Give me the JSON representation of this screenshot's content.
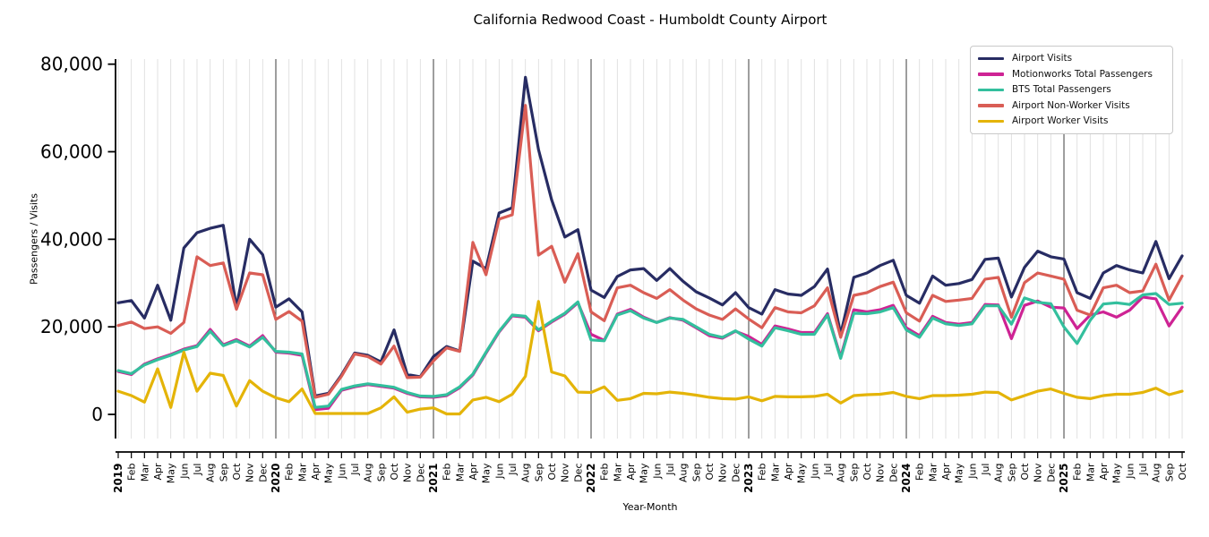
{
  "chart_data": {
    "type": "line",
    "title": "California Redwood Coast - Humboldt County Airport",
    "xlabel": "Year-Month",
    "ylabel": "Passengers / Visits",
    "ylim": [
      -5500,
      81000
    ],
    "yticks": [
      0,
      20000,
      40000,
      60000,
      80000
    ],
    "ytick_labels": [
      "0",
      "20,000",
      "40,000",
      "60,000",
      "80,000"
    ],
    "grid": "vertical-monthly, dark line at each January",
    "legend_position": "upper right",
    "x_labels": [
      "2019",
      "Feb",
      "Mar",
      "Apr",
      "May",
      "Jun",
      "Jul",
      "Aug",
      "Sep",
      "Oct",
      "Nov",
      "Dec",
      "2020",
      "Feb",
      "Mar",
      "Apr",
      "May",
      "Jun",
      "Jul",
      "Aug",
      "Sep",
      "Oct",
      "Nov",
      "Dec",
      "2021",
      "Feb",
      "Mar",
      "Apr",
      "May",
      "Jun",
      "Jul",
      "Aug",
      "Sep",
      "Oct",
      "Nov",
      "Dec",
      "2022",
      "Feb",
      "Mar",
      "Apr",
      "May",
      "Jun",
      "Jul",
      "Aug",
      "Sep",
      "Oct",
      "Nov",
      "Dec",
      "2023",
      "Feb",
      "Mar",
      "Apr",
      "May",
      "Jun",
      "Jul",
      "Aug",
      "Sep",
      "Oct",
      "Nov",
      "Dec",
      "2024",
      "Feb",
      "Mar",
      "Apr",
      "May",
      "Jun",
      "Jul",
      "Aug",
      "Sep",
      "Oct",
      "Nov",
      "Dec",
      "2025",
      "Feb",
      "Mar",
      "Apr",
      "May",
      "Jun",
      "Jul",
      "Aug",
      "Sep",
      "Oct"
    ],
    "year_line_indices": [
      12,
      24,
      36,
      48,
      60,
      72
    ],
    "series": [
      {
        "name": "Airport Visits",
        "color": "#272c63",
        "values": [
          25500,
          26000,
          22000,
          29500,
          21500,
          38000,
          41500,
          42500,
          43200,
          24500,
          40000,
          36500,
          24500,
          26400,
          23400,
          4200,
          4800,
          9000,
          14000,
          13500,
          12000,
          19300,
          9100,
          8600,
          13200,
          15500,
          14500,
          35000,
          33300,
          46000,
          47200,
          77000,
          60500,
          49000,
          40500,
          42200,
          28400,
          26700,
          31500,
          33000,
          33300,
          30600,
          33300,
          30400,
          28000,
          26600,
          25000,
          27800,
          24400,
          22900,
          28500,
          27500,
          27200,
          29200,
          33200,
          18300,
          31300,
          32300,
          34000,
          35200,
          27200,
          25400,
          31600,
          29500,
          29900,
          30800,
          35400,
          35700,
          26800,
          33600,
          37300,
          36000,
          35500,
          27800,
          26500,
          32300,
          34000,
          33000,
          32300,
          39500,
          31000,
          36200
        ]
      },
      {
        "name": "Motionworks Total Passengers",
        "color": "#ce2394",
        "values": [
          9800,
          9100,
          11500,
          12700,
          13700,
          14900,
          15700,
          19400,
          15900,
          17100,
          15600,
          18000,
          14200,
          14000,
          13500,
          1100,
          1400,
          5500,
          6300,
          6800,
          6400,
          6000,
          4800,
          4000,
          3900,
          4300,
          6100,
          9000,
          14000,
          18800,
          22500,
          22200,
          19100,
          21100,
          22900,
          25500,
          18300,
          16900,
          22900,
          24000,
          22200,
          21000,
          22100,
          21500,
          19800,
          18000,
          17400,
          19000,
          17800,
          16000,
          20200,
          19500,
          18700,
          18700,
          23000,
          13100,
          23900,
          23400,
          23900,
          24900,
          19800,
          18000,
          22400,
          21000,
          20600,
          21000,
          25100,
          25000,
          17300,
          24900,
          25900,
          24500,
          24300,
          19600,
          22700,
          23400,
          22200,
          23800,
          26800,
          26400,
          20200,
          24500
        ]
      },
      {
        "name": "BTS Total Passengers",
        "color": "#33bf9d",
        "values": [
          10000,
          9300,
          11300,
          12500,
          13500,
          14700,
          15500,
          19000,
          15700,
          16800,
          15400,
          17600,
          14400,
          14200,
          13800,
          1600,
          1900,
          5700,
          6500,
          7000,
          6600,
          6200,
          5000,
          4200,
          4100,
          4500,
          6300,
          9200,
          14200,
          19000,
          22700,
          22400,
          19300,
          21300,
          23100,
          25700,
          17000,
          16800,
          22700,
          23700,
          22000,
          21000,
          22000,
          21700,
          20000,
          18300,
          17600,
          19100,
          17200,
          15600,
          19800,
          19100,
          18300,
          18300,
          22700,
          12800,
          23100,
          23000,
          23400,
          24400,
          19300,
          17600,
          22000,
          20700,
          20300,
          20700,
          24800,
          24800,
          20600,
          26600,
          25600,
          25300,
          20000,
          16200,
          21500,
          25200,
          25500,
          25100,
          27300,
          27600,
          25100,
          25400
        ]
      },
      {
        "name": "Airport Non-Worker Visits",
        "color": "#d95d55",
        "values": [
          20300,
          21100,
          19600,
          20000,
          18500,
          21000,
          36000,
          34000,
          34600,
          24000,
          32300,
          31900,
          21700,
          23500,
          21300,
          3900,
          4600,
          8700,
          13800,
          13200,
          11500,
          15600,
          8400,
          8500,
          12200,
          15200,
          14400,
          39300,
          31900,
          44600,
          45600,
          70600,
          36400,
          38400,
          30200,
          36700,
          23400,
          21400,
          28900,
          29500,
          27800,
          26500,
          28500,
          26100,
          24100,
          22700,
          21700,
          24100,
          21800,
          19800,
          24400,
          23400,
          23200,
          24800,
          28900,
          17600,
          27200,
          27800,
          29200,
          30200,
          23200,
          21300,
          27200,
          25800,
          26100,
          26500,
          30900,
          31300,
          22200,
          30100,
          32300,
          31600,
          30900,
          23800,
          22700,
          28900,
          29500,
          27800,
          28200,
          34300,
          26100,
          31600
        ]
      },
      {
        "name": "Airport Worker Visits",
        "color": "#e4b408",
        "values": [
          5300,
          4300,
          2800,
          10400,
          1600,
          14200,
          5300,
          9400,
          8900,
          1900,
          7700,
          5300,
          3800,
          2900,
          5800,
          200,
          200,
          200,
          200,
          200,
          1500,
          4000,
          500,
          1200,
          1500,
          100,
          100,
          3300,
          3900,
          2900,
          4600,
          8700,
          25800,
          9700,
          8800,
          5100,
          5000,
          6300,
          3200,
          3600,
          4800,
          4700,
          5100,
          4800,
          4400,
          3900,
          3600,
          3500,
          4000,
          3100,
          4100,
          4000,
          4000,
          4100,
          4600,
          2600,
          4300,
          4500,
          4600,
          5000,
          4100,
          3600,
          4300,
          4300,
          4400,
          4600,
          5100,
          5000,
          3300,
          4300,
          5300,
          5800,
          4800,
          3900,
          3600,
          4300,
          4600,
          4600,
          5000,
          6000,
          4500,
          5300
        ]
      }
    ]
  }
}
